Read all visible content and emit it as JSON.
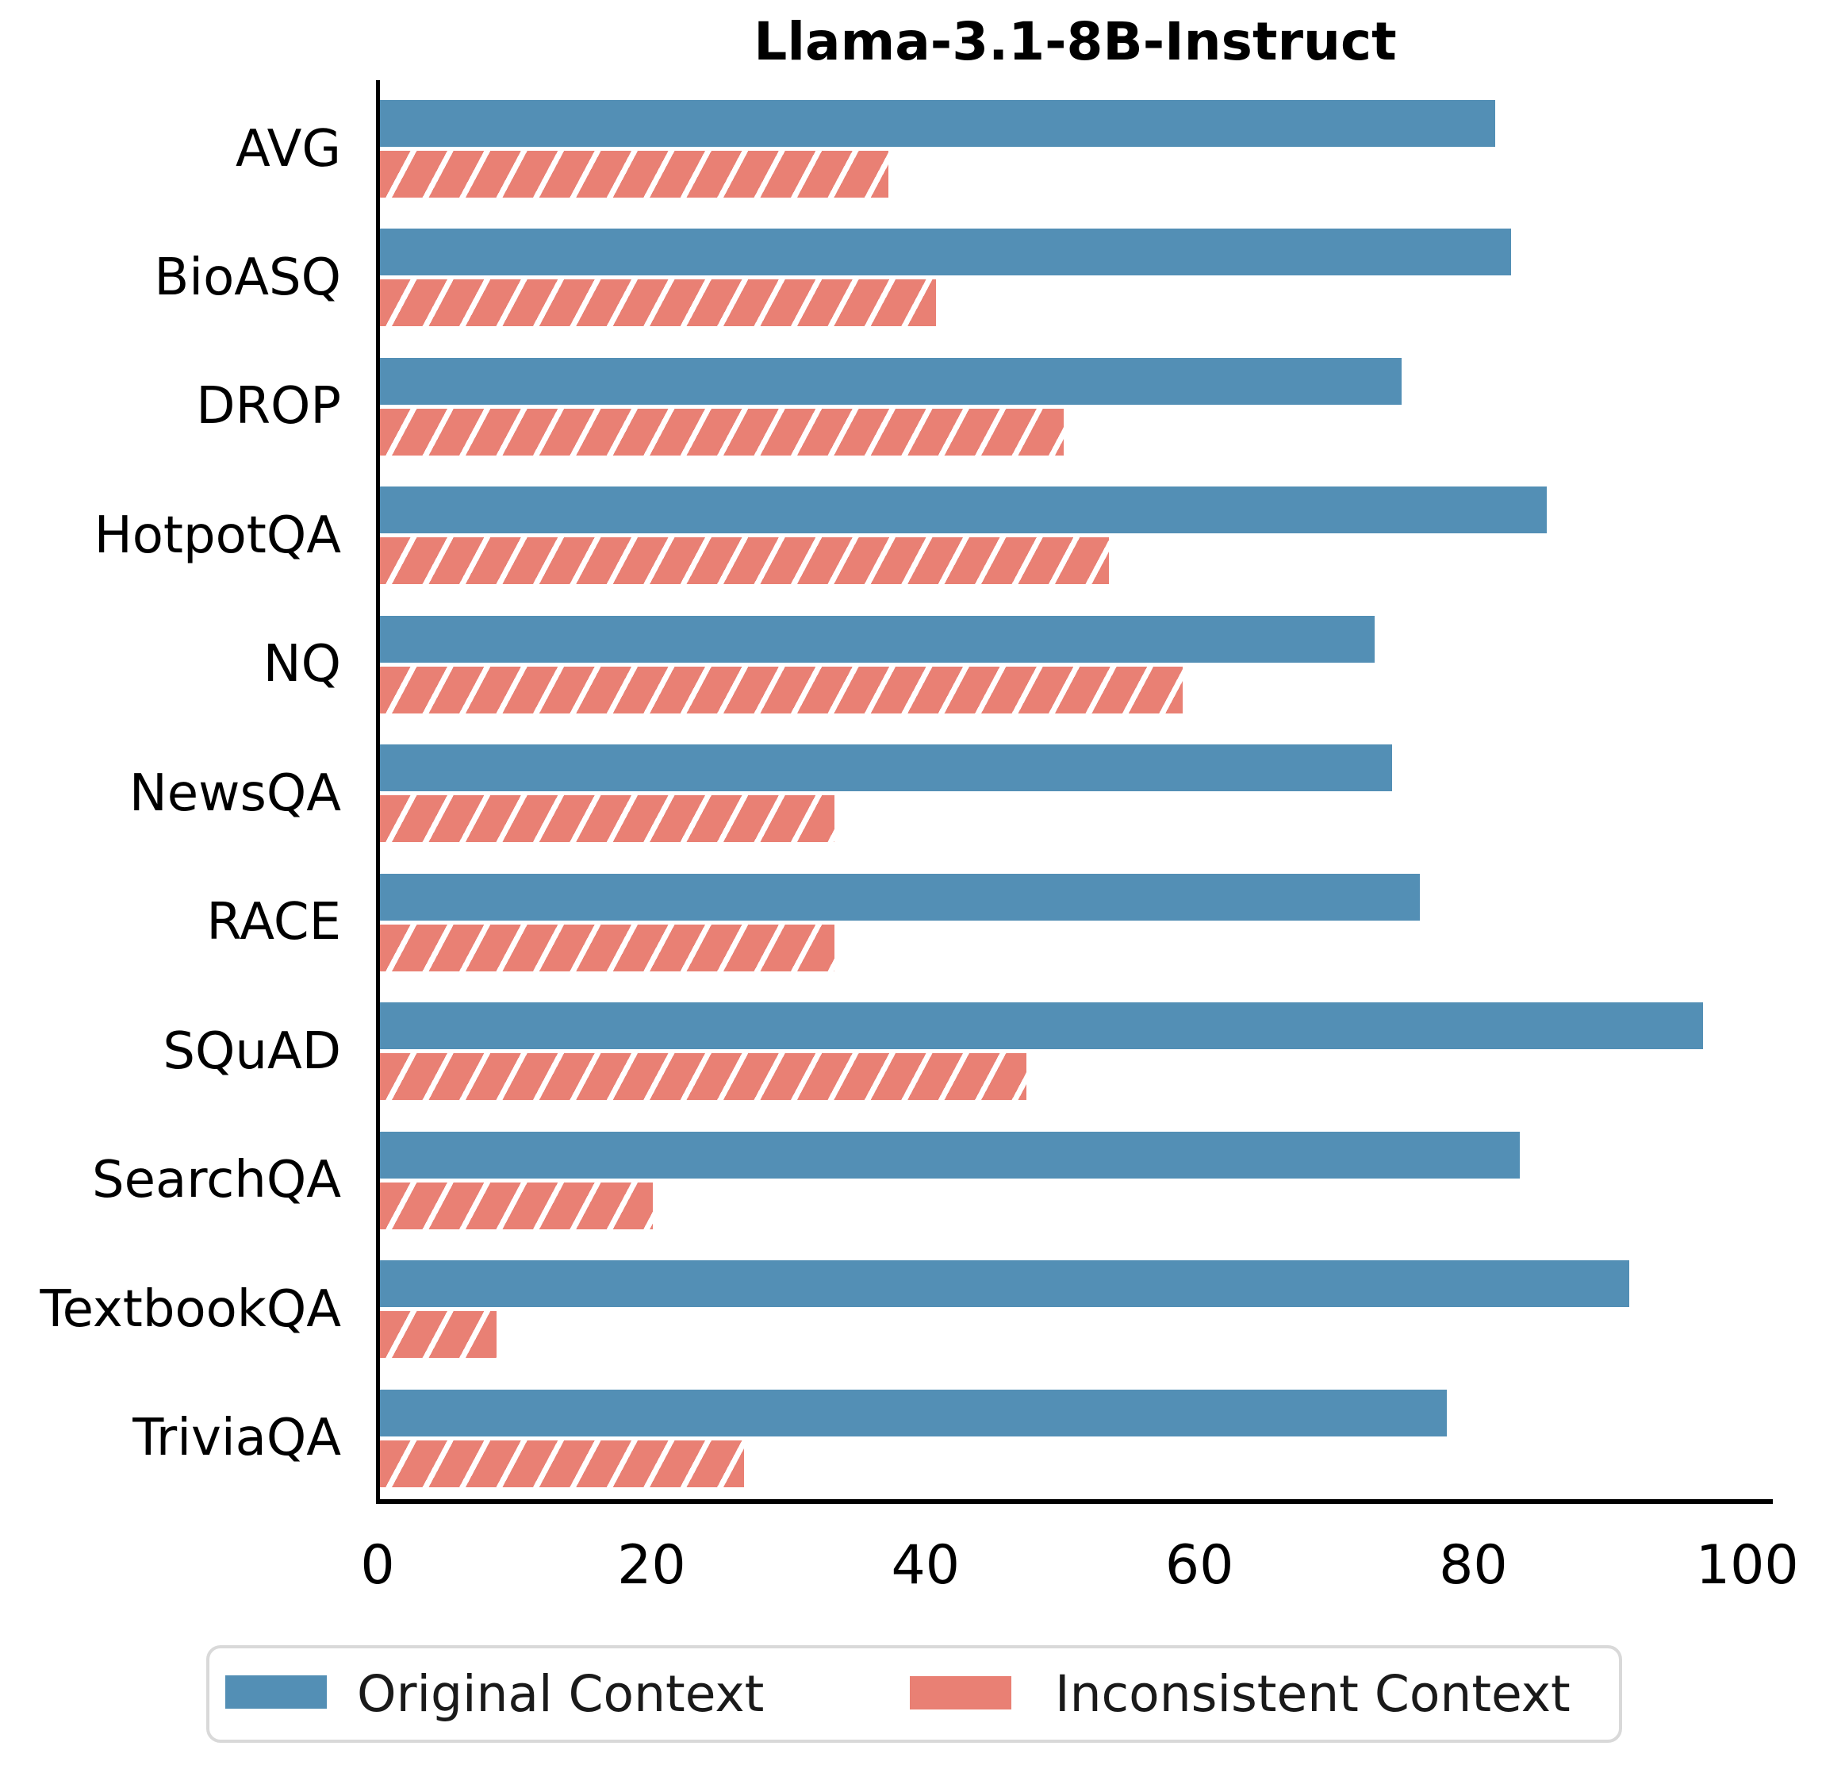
{
  "title": "Llama-3.1-8B-Instruct",
  "colors": {
    "original_context": "#538FB5",
    "inconsistent_context": "#E98074",
    "hatch": "#FFFFFF",
    "axis": "#000000",
    "legend_border": "#D9D9D9",
    "legend_text": "#1A1A1A"
  },
  "legend": {
    "items": [
      {
        "label": "Original Context",
        "color": "#538FB5",
        "hatched": false
      },
      {
        "label": "Inconsistent Context",
        "color": "#E98074",
        "hatched": false
      }
    ]
  },
  "x_axis": {
    "tick_labels": [
      "0",
      "20",
      "40",
      "60",
      "80",
      "100"
    ],
    "tick_values": [
      0,
      20,
      40,
      60,
      80,
      100
    ]
  },
  "chart_data": {
    "type": "bar",
    "orientation": "horizontal",
    "title": "Llama-3.1-8B-Instruct",
    "categories": [
      "AVG",
      "BioASQ",
      "DROP",
      "HotpotQA",
      "NQ",
      "NewsQA",
      "RACE",
      "SQuAD",
      "SearchQA",
      "TextbookQA",
      "TriviaQA"
    ],
    "series": [
      {
        "name": "Original Context",
        "color": "#538FB5",
        "hatch": "",
        "values": [
          81.4,
          82.6,
          74.6,
          85.2,
          72.6,
          73.9,
          75.9,
          96.6,
          83.2,
          91.2,
          77.9
        ]
      },
      {
        "name": "Inconsistent Context",
        "color": "#E98074",
        "hatch": "/",
        "values": [
          37.1,
          40.6,
          49.9,
          53.2,
          58.6,
          33.2,
          33.2,
          47.2,
          19.9,
          8.5,
          26.6
        ]
      }
    ],
    "xlabel": "",
    "ylabel": "",
    "xlim": [
      0,
      101.8
    ],
    "grid": false,
    "legend_position": "bottom"
  }
}
